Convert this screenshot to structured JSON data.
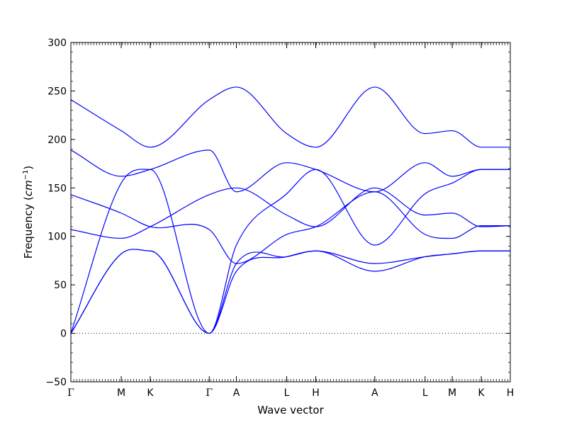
{
  "chart_data": {
    "type": "line",
    "title": "",
    "xlabel": "Wave vector",
    "ylabel_prefix": "Frequency (",
    "ylabel_unit_base": "cm",
    "ylabel_unit_exp": "−1",
    "ylabel_suffix": ")",
    "ylim": [
      -50,
      300
    ],
    "yticks": [
      -50,
      0,
      50,
      100,
      150,
      200,
      250,
      300
    ],
    "xlim": [
      0,
      4.54
    ],
    "path_ticks": [
      {
        "label": "Γ",
        "x": 0.0
      },
      {
        "label": "M",
        "x": 0.52
      },
      {
        "label": "K",
        "x": 0.82
      },
      {
        "label": "Γ",
        "x": 1.43
      },
      {
        "label": "A",
        "x": 1.71
      },
      {
        "label": "L",
        "x": 2.23
      },
      {
        "label": "H",
        "x": 2.53
      },
      {
        "label": "A",
        "x": 3.14
      },
      {
        "label": "L",
        "x": 3.66
      },
      {
        "label": "M",
        "x": 3.94
      },
      {
        "label": "K",
        "x": 4.24
      },
      {
        "label": "H",
        "x": 4.54
      }
    ],
    "zero_line": {
      "y": 0,
      "style": "dotted"
    },
    "line_color": "#0000ff",
    "series": [
      {
        "values": [
          [
            0,
            0
          ],
          [
            0.52,
            82
          ],
          [
            0.82,
            85
          ],
          [
            1.43,
            0
          ],
          [
            1.71,
            64
          ],
          [
            2.23,
            79
          ],
          [
            2.53,
            85
          ],
          [
            3.14,
            64
          ],
          [
            3.66,
            79
          ],
          [
            3.94,
            82
          ],
          [
            4.24,
            85
          ],
          [
            4.54,
            85
          ]
        ]
      },
      {
        "values": [
          [
            0,
            0
          ],
          [
            0.52,
            82
          ],
          [
            0.82,
            85
          ],
          [
            1.43,
            0
          ],
          [
            1.71,
            72
          ],
          [
            2.23,
            79
          ],
          [
            2.53,
            85
          ],
          [
            3.14,
            72
          ],
          [
            3.66,
            79
          ],
          [
            3.94,
            82
          ],
          [
            4.24,
            85
          ],
          [
            4.54,
            85
          ]
        ]
      },
      {
        "values": [
          [
            0,
            0
          ],
          [
            0.52,
            155
          ],
          [
            0.82,
            169
          ],
          [
            1.43,
            0
          ],
          [
            1.71,
            91
          ],
          [
            2.23,
            144
          ],
          [
            2.53,
            169
          ],
          [
            3.14,
            91
          ],
          [
            3.66,
            144
          ],
          [
            3.94,
            155
          ],
          [
            4.24,
            169
          ],
          [
            4.54,
            169
          ]
        ]
      },
      {
        "values": [
          [
            0,
            107
          ],
          [
            0.52,
            98
          ],
          [
            0.82,
            110
          ],
          [
            1.43,
            143
          ],
          [
            1.71,
            150
          ],
          [
            2.23,
            122
          ],
          [
            2.53,
            110
          ],
          [
            3.14,
            150
          ],
          [
            3.66,
            122
          ],
          [
            3.94,
            124
          ],
          [
            4.24,
            110
          ],
          [
            4.54,
            111
          ]
        ]
      },
      {
        "values": [
          [
            0,
            143
          ],
          [
            0.52,
            124
          ],
          [
            0.82,
            110
          ],
          [
            1.43,
            107
          ],
          [
            1.71,
            72
          ],
          [
            2.23,
            102
          ],
          [
            2.53,
            110
          ],
          [
            3.14,
            146
          ],
          [
            3.66,
            102
          ],
          [
            3.94,
            98
          ],
          [
            4.24,
            111
          ],
          [
            4.54,
            111
          ]
        ]
      },
      {
        "values": [
          [
            0,
            189
          ],
          [
            0.52,
            162
          ],
          [
            0.82,
            169
          ],
          [
            1.43,
            189
          ],
          [
            1.71,
            146
          ],
          [
            2.23,
            176
          ],
          [
            2.53,
            169
          ],
          [
            3.14,
            146
          ],
          [
            3.66,
            176
          ],
          [
            3.94,
            162
          ],
          [
            4.24,
            169
          ],
          [
            4.54,
            169
          ]
        ]
      },
      {
        "values": [
          [
            0,
            241
          ],
          [
            0.52,
            209
          ],
          [
            0.82,
            192
          ],
          [
            1.43,
            241
          ],
          [
            1.71,
            254
          ],
          [
            2.23,
            206
          ],
          [
            2.53,
            192
          ],
          [
            3.14,
            254
          ],
          [
            3.66,
            206
          ],
          [
            3.94,
            209
          ],
          [
            4.24,
            192
          ],
          [
            4.54,
            192
          ]
        ]
      }
    ]
  }
}
